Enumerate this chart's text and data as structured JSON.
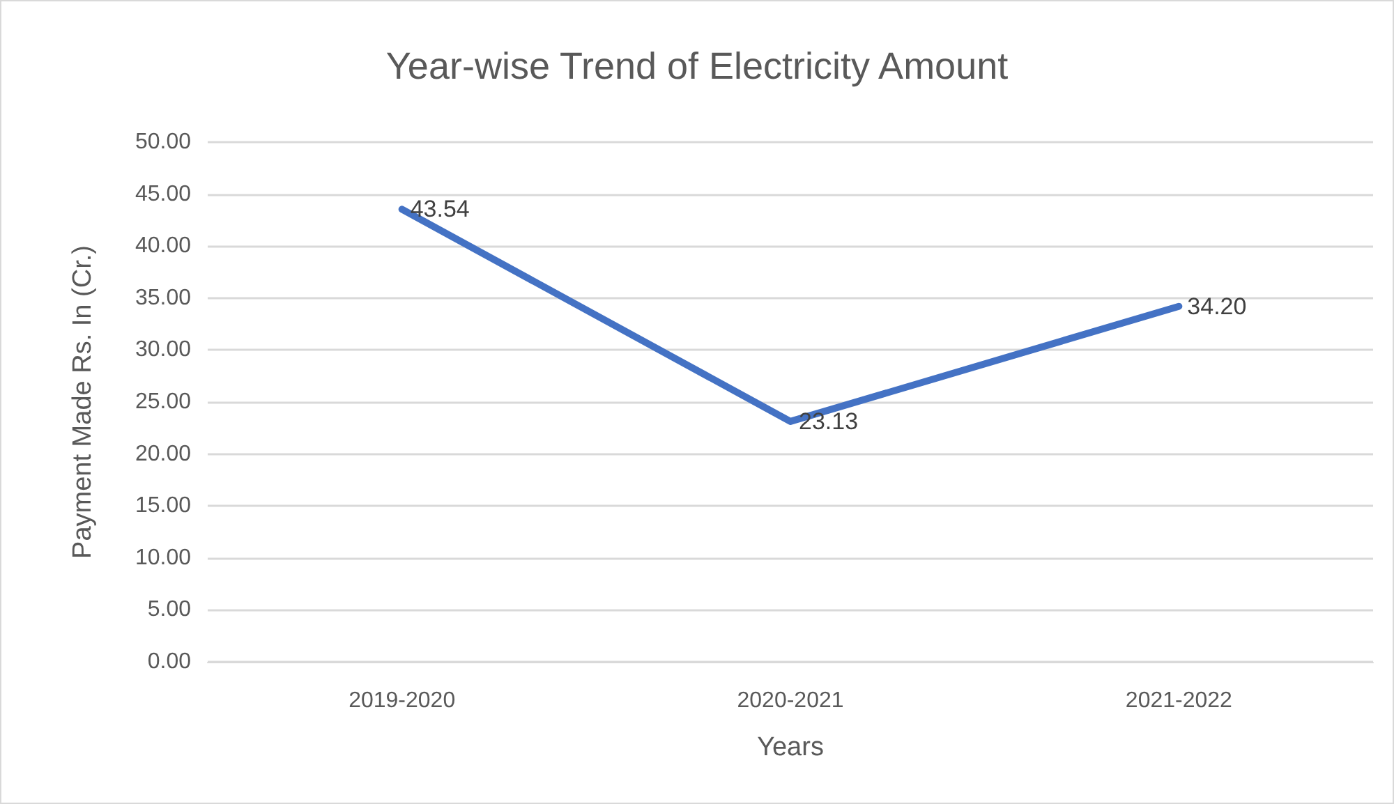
{
  "chart_data": {
    "type": "line",
    "title": "Year-wise Trend of Electricity Amount",
    "xlabel": "Years",
    "ylabel": "Payment Made Rs. In (Cr.)",
    "categories": [
      "2019-2020",
      "2020-2021",
      "2021-2022"
    ],
    "series": [
      {
        "color": "#4472c4",
        "values": [
          43.54,
          23.13,
          34.2
        ],
        "value_labels": [
          "43.54",
          "23.13",
          "34.20"
        ]
      }
    ],
    "ylim": [
      0,
      50
    ],
    "yticks": [
      {
        "value": 0,
        "label": "0.00"
      },
      {
        "value": 5,
        "label": "5.00"
      },
      {
        "value": 10,
        "label": "10.00"
      },
      {
        "value": 15,
        "label": "15.00"
      },
      {
        "value": 20,
        "label": "20.00"
      },
      {
        "value": 25,
        "label": "25.00"
      },
      {
        "value": 30,
        "label": "30.00"
      },
      {
        "value": 35,
        "label": "35.00"
      },
      {
        "value": 40,
        "label": "40.00"
      },
      {
        "value": 45,
        "label": "45.00"
      },
      {
        "value": 50,
        "label": "50.00"
      }
    ],
    "grid": "y",
    "marker": "none",
    "line_style": "solid"
  }
}
